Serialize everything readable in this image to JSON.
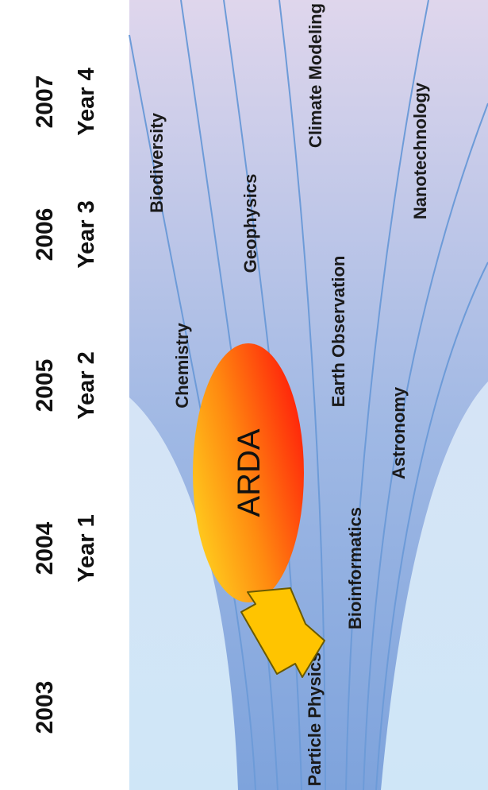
{
  "timeline": {
    "years": [
      {
        "year": "2003",
        "label": ""
      },
      {
        "year": "2004",
        "label": "Year 1"
      },
      {
        "year": "2005",
        "label": "Year 2"
      },
      {
        "year": "2006",
        "label": "Year 3"
      },
      {
        "year": "2007",
        "label": "Year 4"
      }
    ]
  },
  "domains": [
    "Particle Physics",
    "Bioinformatics",
    "Astronomy",
    "Chemistry",
    "Earth Observation",
    "Geophysics",
    "Biodiversity",
    "Nanotechnology",
    "Climate Modeling"
  ],
  "central_label": "ARDA",
  "colors": {
    "panel_light": "#cfe6f7",
    "panel_top": "#e8ddee",
    "funnel_dark": "#7ea3dc",
    "line": "#6d9bd8",
    "ellipse_start": "#ffd21f",
    "ellipse_end": "#ff1a0a",
    "arrow_fill": "#ffc400",
    "arrow_stroke": "#6a5a00"
  }
}
